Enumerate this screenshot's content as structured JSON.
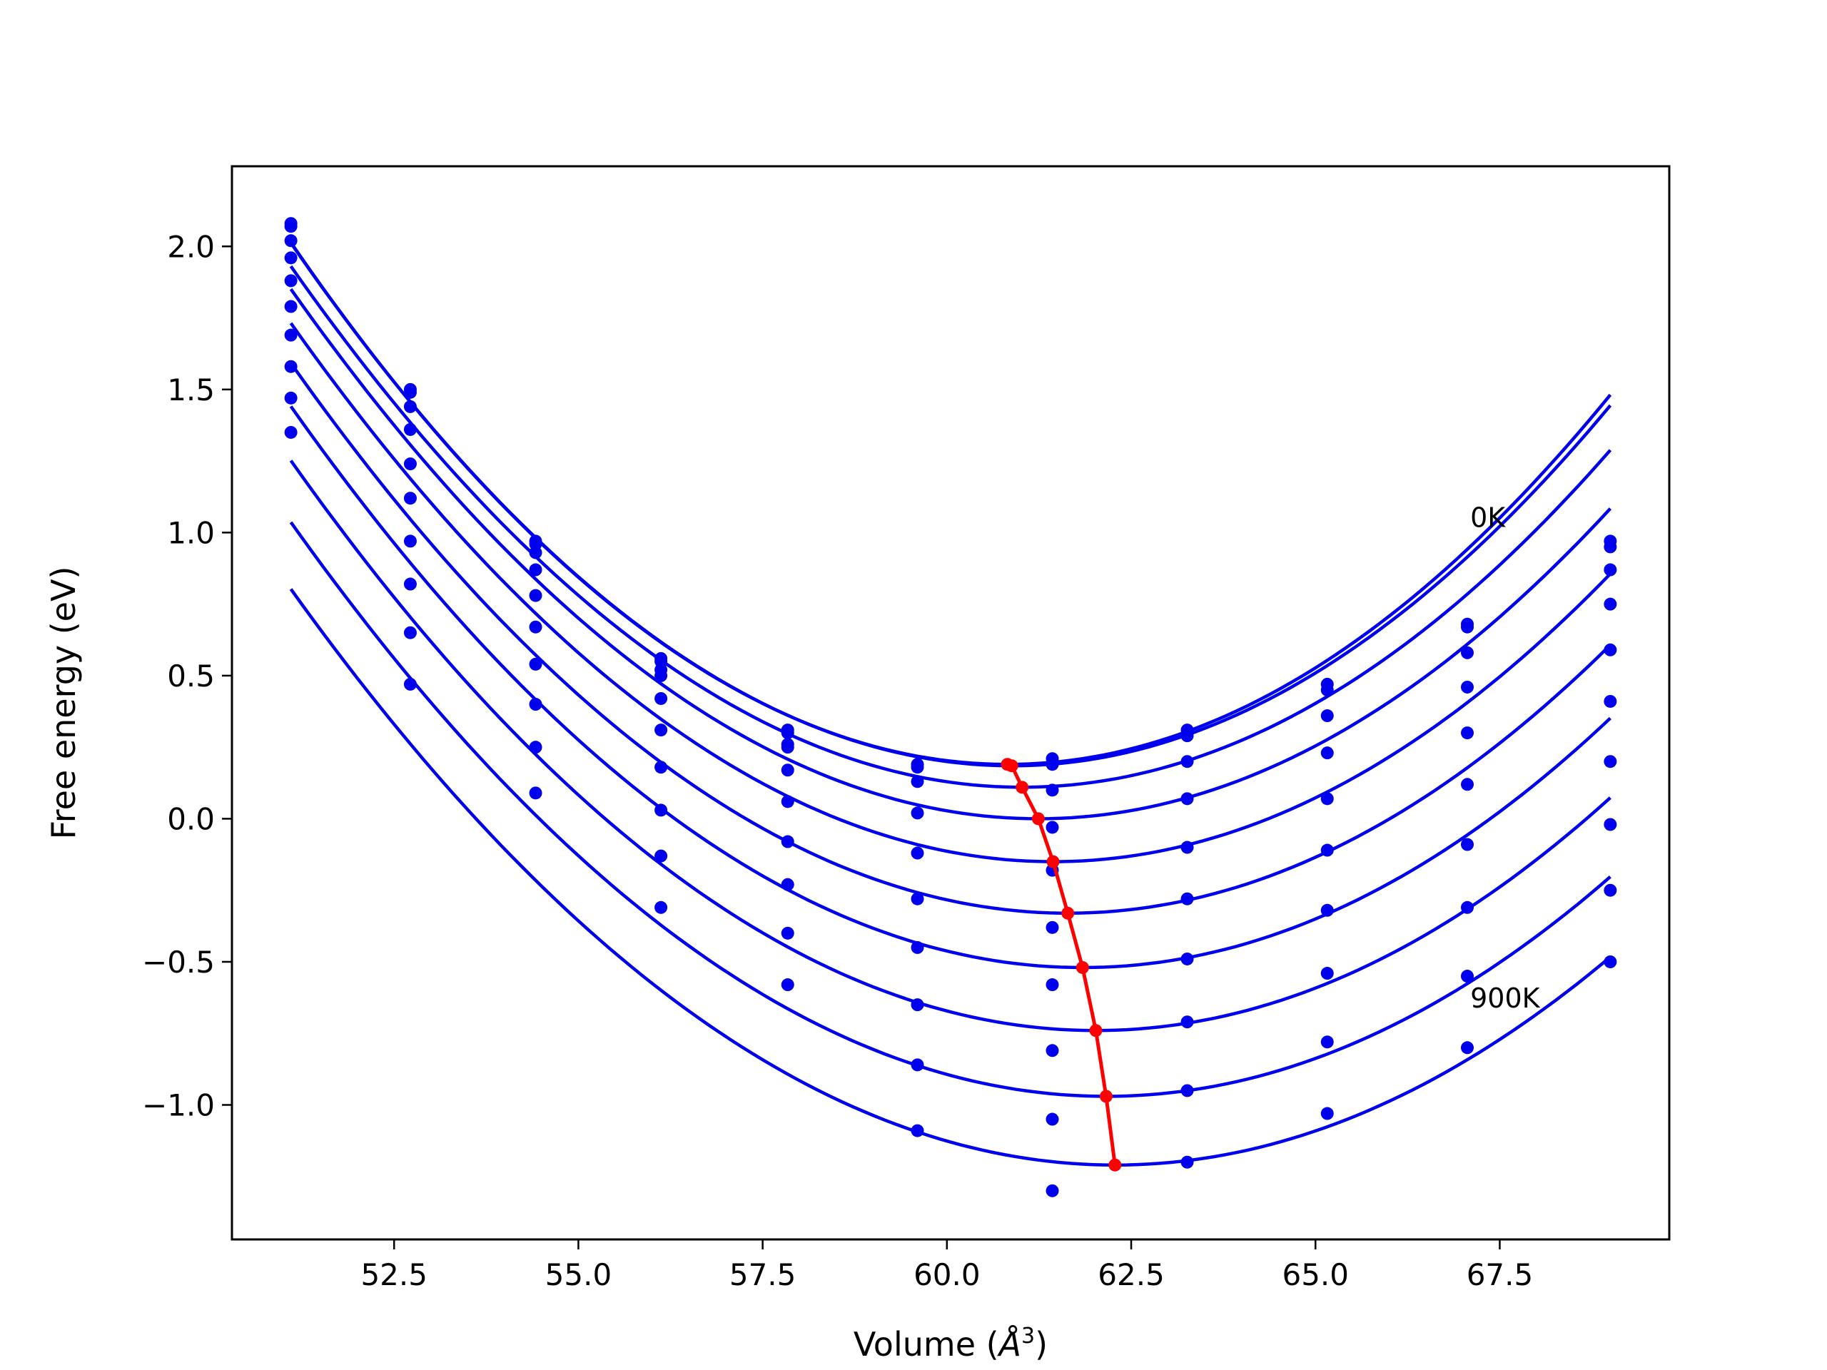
{
  "chart_data": {
    "type": "line",
    "title": "",
    "xlabel_main": "Volume (",
    "xlabel_sym": "Å",
    "xlabel_exp": "3",
    "xlabel_close": ")",
    "ylabel": "Free energy (eV)",
    "xlim": [
      50.3,
      69.8
    ],
    "ylim": [
      -1.47,
      2.28
    ],
    "xticks": [
      {
        "value": 52.5,
        "label": "52.5"
      },
      {
        "value": 55.0,
        "label": "55.0"
      },
      {
        "value": 57.5,
        "label": "57.5"
      },
      {
        "value": 60.0,
        "label": "60.0"
      },
      {
        "value": 62.5,
        "label": "62.5"
      },
      {
        "value": 65.0,
        "label": "65.0"
      },
      {
        "value": 67.5,
        "label": "67.5"
      }
    ],
    "yticks": [
      {
        "value": 2.0,
        "label": "2.0"
      },
      {
        "value": 1.5,
        "label": "1.5"
      },
      {
        "value": 1.0,
        "label": "1.0"
      },
      {
        "value": 0.5,
        "label": "0.5"
      },
      {
        "value": 0.0,
        "label": "0.0"
      },
      {
        "value": -0.5,
        "label": "−0.5"
      },
      {
        "value": -1.0,
        "label": "−1.0"
      }
    ],
    "volumes": [
      51.1,
      52.72,
      54.42,
      56.12,
      57.84,
      59.6,
      61.43,
      63.26,
      65.16,
      67.06,
      69.0
    ],
    "curve_color": "#0000ee",
    "point_color": "#0000ee",
    "min_color": "#ff0000",
    "curves": [
      {
        "vmin": 60.82,
        "emin": 0.19,
        "coef": 0.0193,
        "points": [
          2.07,
          1.5,
          0.97,
          0.56,
          0.31,
          0.19,
          0.21,
          0.31,
          0.47,
          0.68,
          0.97
        ]
      },
      {
        "vmin": 60.88,
        "emin": 0.185,
        "coef": 0.0191,
        "points": [
          2.08,
          1.49,
          0.96,
          0.55,
          0.3,
          0.18,
          0.19,
          0.29,
          0.45,
          0.67,
          0.95
        ]
      },
      {
        "vmin": 61.02,
        "emin": 0.11,
        "coef": 0.0185,
        "points": [
          2.02,
          1.44,
          0.93,
          0.52,
          0.26,
          0.13,
          0.1,
          0.2,
          0.36,
          0.58,
          0.87
        ]
      },
      {
        "vmin": 61.24,
        "emin": 0.0,
        "coef": 0.018,
        "points": [
          1.96,
          1.36,
          0.87,
          0.5,
          0.25,
          0.02,
          -0.03,
          0.07,
          0.23,
          0.46,
          0.75
        ]
      },
      {
        "vmin": 61.44,
        "emin": -0.15,
        "coef": 0.0176,
        "points": [
          1.88,
          1.24,
          0.78,
          0.42,
          0.17,
          -0.12,
          -0.18,
          -0.1,
          0.07,
          0.3,
          0.59
        ]
      },
      {
        "vmin": 61.64,
        "emin": -0.33,
        "coef": 0.0173,
        "points": [
          1.79,
          1.12,
          0.67,
          0.31,
          0.06,
          -0.28,
          -0.38,
          -0.28,
          -0.11,
          0.12,
          0.41
        ]
      },
      {
        "vmin": 61.84,
        "emin": -0.52,
        "coef": 0.017,
        "points": [
          1.69,
          0.97,
          0.54,
          0.18,
          -0.08,
          -0.45,
          -0.58,
          -0.49,
          -0.32,
          -0.09,
          0.2
        ]
      },
      {
        "vmin": 62.02,
        "emin": -0.74,
        "coef": 0.0167,
        "points": [
          1.58,
          0.82,
          0.4,
          0.03,
          -0.23,
          -0.65,
          -0.81,
          -0.71,
          -0.54,
          -0.31,
          -0.02
        ]
      },
      {
        "vmin": 62.16,
        "emin": -0.97,
        "coef": 0.0164,
        "points": [
          1.47,
          0.65,
          0.25,
          -0.13,
          -0.4,
          -0.86,
          -1.05,
          -0.95,
          -0.78,
          -0.55,
          -0.25
        ]
      },
      {
        "vmin": 62.28,
        "emin": -1.21,
        "coef": 0.0161,
        "points": [
          1.35,
          0.47,
          0.09,
          -0.31,
          -0.58,
          -1.09,
          -1.3,
          -1.2,
          -1.03,
          -0.8,
          -0.5
        ]
      }
    ],
    "min_line": {
      "x": [
        60.82,
        60.88,
        61.02,
        61.24,
        61.44,
        61.64,
        61.84,
        62.02,
        62.16,
        62.28
      ],
      "y": [
        0.19,
        0.185,
        0.11,
        0.0,
        -0.15,
        -0.33,
        -0.52,
        -0.74,
        -0.97,
        -1.21
      ]
    },
    "annotations": [
      {
        "text": "0K",
        "x": 67.1,
        "y": 1.02
      },
      {
        "text": "900K",
        "x": 67.1,
        "y": -0.66
      }
    ]
  }
}
